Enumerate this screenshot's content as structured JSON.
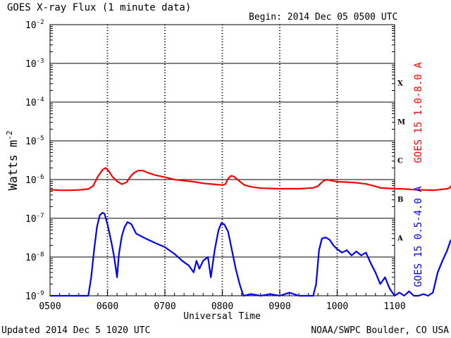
{
  "header": {
    "title": "GOES X-ray Flux (1 minute data)",
    "begin": "Begin: 2014 Dec 05 0500 UTC"
  },
  "footer": {
    "updated": "Updated 2014 Dec  5 1020 UTC",
    "source": "NOAA/SWPC Boulder, CO USA"
  },
  "chart_data": {
    "type": "line",
    "title": "GOES X-ray Flux (1 minute data)",
    "xlabel": "Universal Time",
    "ylabel": "Watts m",
    "ylabel_sup": "-2",
    "yscale": "log",
    "ylim": [
      1e-09,
      0.01
    ],
    "xlim": [
      "0500",
      "1100"
    ],
    "x_ticks": [
      "0500",
      "0600",
      "0700",
      "0800",
      "0900",
      "1000",
      "1100"
    ],
    "y_ticks": [
      {
        "base": "10",
        "exp": "-2"
      },
      {
        "base": "10",
        "exp": "-3"
      },
      {
        "base": "10",
        "exp": "-4"
      },
      {
        "base": "10",
        "exp": "-5"
      },
      {
        "base": "10",
        "exp": "-6"
      },
      {
        "base": "10",
        "exp": "-7"
      },
      {
        "base": "10",
        "exp": "-8"
      },
      {
        "base": "10",
        "exp": "-9"
      }
    ],
    "flare_classes": [
      "X",
      "M",
      "C",
      "B",
      "A"
    ],
    "grid": true,
    "series": [
      {
        "name": "GOES 15 1.0-8.0 A",
        "color": "#ff0000",
        "points": [
          [
            "0500",
            5.5e-07
          ],
          [
            "0510",
            5.3e-07
          ],
          [
            "0520",
            5.3e-07
          ],
          [
            "0530",
            5.4e-07
          ],
          [
            "0540",
            5.7e-07
          ],
          [
            "0545",
            6.8e-07
          ],
          [
            "0550",
            1.2e-06
          ],
          [
            "0555",
            1.8e-06
          ],
          [
            "0558",
            2e-06
          ],
          [
            "0601",
            1.7e-06
          ],
          [
            "0605",
            1.2e-06
          ],
          [
            "0610",
            9e-07
          ],
          [
            "0615",
            7.6e-07
          ],
          [
            "0620",
            8.5e-07
          ],
          [
            "0624",
            1.2e-06
          ],
          [
            "0628",
            1.5e-06
          ],
          [
            "0632",
            1.7e-06
          ],
          [
            "0637",
            1.7e-06
          ],
          [
            "0642",
            1.5e-06
          ],
          [
            "0650",
            1.3e-06
          ],
          [
            "0700",
            1.15e-06
          ],
          [
            "0710",
            1e-06
          ],
          [
            "0720",
            9.3e-07
          ],
          [
            "0730",
            8.8e-07
          ],
          [
            "0740",
            8e-07
          ],
          [
            "0750",
            7.6e-07
          ],
          [
            "0755",
            7.4e-07
          ],
          [
            "0800",
            7.2e-07
          ],
          [
            "0803",
            7.6e-07
          ],
          [
            "0806",
            1.05e-06
          ],
          [
            "0809",
            1.25e-06
          ],
          [
            "0812",
            1.2e-06
          ],
          [
            "0818",
            9e-07
          ],
          [
            "0823",
            7.2e-07
          ],
          [
            "0830",
            6.5e-07
          ],
          [
            "0840",
            6e-07
          ],
          [
            "0850",
            5.9e-07
          ],
          [
            "0900",
            5.8e-07
          ],
          [
            "0910",
            5.8e-07
          ],
          [
            "0920",
            5.8e-07
          ],
          [
            "0930",
            6e-07
          ],
          [
            "0935",
            6.1e-07
          ],
          [
            "0940",
            6.8e-07
          ],
          [
            "0945",
            9e-07
          ],
          [
            "0949",
            1e-06
          ],
          [
            "0955",
            9.3e-07
          ],
          [
            "1000",
            8.8e-07
          ],
          [
            "1010",
            8.6e-07
          ],
          [
            "1020",
            8.3e-07
          ],
          [
            "1030",
            7.7e-07
          ],
          [
            "1040",
            6.7e-07
          ],
          [
            "1045",
            6.1e-07
          ],
          [
            "1050",
            6e-07
          ],
          [
            "1100",
            5.8e-07
          ],
          [
            "1110",
            5.7e-07
          ],
          [
            "1120",
            5.5e-07
          ],
          [
            "1130",
            5.4e-07
          ],
          [
            "1140",
            5.3e-07
          ],
          [
            "1145",
            5.4e-07
          ],
          [
            "1150",
            5.6e-07
          ],
          [
            "1155",
            5.8e-07
          ],
          [
            "1158",
            6.2e-07
          ],
          [
            "1200",
            7.5e-07
          ]
        ]
      },
      {
        "name": "GOES 15 0.5-4.0 A",
        "color": "#0000ff",
        "points": [
          [
            "0500",
            1e-09
          ],
          [
            "0505",
            8e-10
          ],
          [
            "0510",
            9e-10
          ],
          [
            "0515",
            8e-10
          ],
          [
            "0520",
            1e-09
          ],
          [
            "0525",
            8e-10
          ],
          [
            "0530",
            1e-09
          ],
          [
            "0535",
            8e-10
          ],
          [
            "0540",
            1e-09
          ],
          [
            "0543",
            3e-09
          ],
          [
            "0546",
            1.5e-08
          ],
          [
            "0549",
            6e-08
          ],
          [
            "0552",
            1.2e-07
          ],
          [
            "0555",
            1.4e-07
          ],
          [
            "0557",
            1.3e-07
          ],
          [
            "0600",
            7e-08
          ],
          [
            "0604",
            2.5e-08
          ],
          [
            "0607",
            1e-08
          ],
          [
            "0610",
            3e-09
          ],
          [
            "0612",
            1.2e-08
          ],
          [
            "0615",
            3.5e-08
          ],
          [
            "0618",
            6e-08
          ],
          [
            "0621",
            8e-08
          ],
          [
            "0625",
            7e-08
          ],
          [
            "0630",
            4e-08
          ],
          [
            "0640",
            3e-08
          ],
          [
            "0650",
            2.3e-08
          ],
          [
            "0700",
            1.8e-08
          ],
          [
            "0710",
            1.2e-08
          ],
          [
            "0718",
            8e-09
          ],
          [
            "0725",
            6e-09
          ],
          [
            "0730",
            4e-09
          ],
          [
            "0733",
            8e-09
          ],
          [
            "0736",
            5e-09
          ],
          [
            "0740",
            8e-09
          ],
          [
            "0745",
            1e-08
          ],
          [
            "0748",
            3e-09
          ],
          [
            "0752",
            1.5e-08
          ],
          [
            "0756",
            5e-08
          ],
          [
            "0759",
            7.5e-08
          ],
          [
            "0802",
            7e-08
          ],
          [
            "0806",
            4.5e-08
          ],
          [
            "0810",
            1.5e-08
          ],
          [
            "0814",
            5e-09
          ],
          [
            "0818",
            2e-09
          ],
          [
            "0822",
            1e-09
          ],
          [
            "0830",
            1.1e-09
          ],
          [
            "0840",
            9e-10
          ],
          [
            "0850",
            1.1e-09
          ],
          [
            "0900",
            9e-10
          ],
          [
            "0910",
            1.2e-09
          ],
          [
            "0920",
            9e-10
          ],
          [
            "0930",
            1e-09
          ],
          [
            "0935",
            9e-10
          ],
          [
            "0938",
            2e-09
          ],
          [
            "0941",
            1.5e-08
          ],
          [
            "0944",
            3e-08
          ],
          [
            "0948",
            3.2e-08
          ],
          [
            "0952",
            2.8e-08
          ],
          [
            "0956",
            2e-08
          ],
          [
            "1000",
            1.6e-08
          ],
          [
            "1005",
            1.3e-08
          ],
          [
            "1010",
            1.5e-08
          ],
          [
            "1015",
            1.1e-08
          ],
          [
            "1020",
            1.4e-08
          ],
          [
            "1025",
            1.1e-08
          ],
          [
            "1030",
            1.3e-08
          ],
          [
            "1035",
            7e-09
          ],
          [
            "1040",
            4e-09
          ],
          [
            "1045",
            2e-09
          ],
          [
            "1050",
            3e-09
          ],
          [
            "1055",
            1.5e-09
          ],
          [
            "1100",
            1e-09
          ],
          [
            "1105",
            1.2e-09
          ],
          [
            "1110",
            1e-09
          ],
          [
            "1115",
            1.3e-09
          ],
          [
            "1120",
            1e-09
          ],
          [
            "1125",
            1e-09
          ],
          [
            "1130",
            1.1e-09
          ],
          [
            "1135",
            9e-10
          ],
          [
            "1140",
            1.2e-09
          ],
          [
            "1145",
            4e-09
          ],
          [
            "1150",
            8e-09
          ],
          [
            "1155",
            1.5e-08
          ],
          [
            "1158",
            2.5e-08
          ],
          [
            "1200",
            3e-08
          ]
        ]
      }
    ]
  }
}
